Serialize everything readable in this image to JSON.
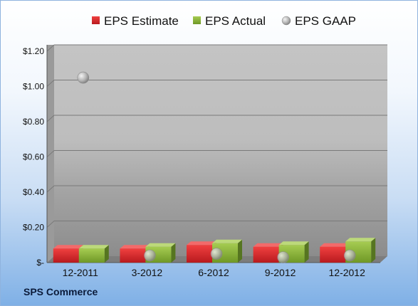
{
  "chart_data": {
    "type": "bar",
    "categories": [
      "12-2011",
      "3-2012",
      "6-2012",
      "9-2012",
      "12-2012"
    ],
    "series": [
      {
        "name": "EPS Estimate",
        "kind": "bar",
        "color": "#d9262a",
        "values": [
          0.08,
          0.08,
          0.1,
          0.09,
          0.09
        ]
      },
      {
        "name": "EPS Actual",
        "kind": "bar",
        "color": "#8db33a",
        "values": [
          0.08,
          0.09,
          0.11,
          0.1,
          0.12
        ]
      },
      {
        "name": "EPS GAAP",
        "kind": "scatter",
        "color": "#b8b8b8",
        "values": [
          1.03,
          0.02,
          0.03,
          0.01,
          0.02
        ]
      }
    ],
    "y_ticks": [
      "$-",
      "$0.20",
      "$0.40",
      "$0.60",
      "$0.80",
      "$1.00",
      "$1.20"
    ],
    "ylim": [
      0,
      1.2
    ],
    "grid": true,
    "legend": "top"
  },
  "source": "SPS Commerce"
}
